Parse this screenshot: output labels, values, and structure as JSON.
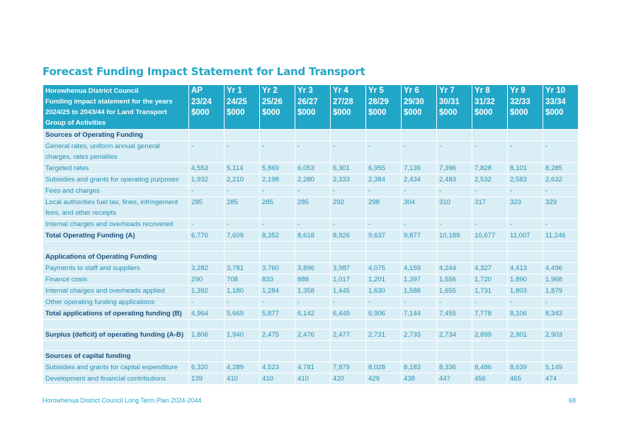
{
  "page_title": "Forecast Funding Impact Statement for Land Transport",
  "header": {
    "label_lines": [
      "Horowhenua District Council",
      "Funding impact statement for the years",
      "2024/25 to 2043/44 for Land Transport",
      "Group of Activities"
    ],
    "columns": [
      {
        "l1": "AP",
        "l2": "23/24",
        "l3": "$000"
      },
      {
        "l1": "Yr 1",
        "l2": "24/25",
        "l3": "$000"
      },
      {
        "l1": "Yr 2",
        "l2": "25/26",
        "l3": "$000"
      },
      {
        "l1": "Yr 3",
        "l2": "26/27",
        "l3": "$000"
      },
      {
        "l1": "Yr 4",
        "l2": "27/28",
        "l3": "$000"
      },
      {
        "l1": "Yr 5",
        "l2": "28/29",
        "l3": "$000"
      },
      {
        "l1": "Yr 6",
        "l2": "29/30",
        "l3": "$000"
      },
      {
        "l1": "Yr 7",
        "l2": "30/31",
        "l3": "$000"
      },
      {
        "l1": "Yr 8",
        "l2": "31/32",
        "l3": "$000"
      },
      {
        "l1": "Yr 9",
        "l2": "32/33",
        "l3": "$000"
      },
      {
        "l1": "Yr 10",
        "l2": "33/34",
        "l3": "$000"
      }
    ]
  },
  "rows": [
    {
      "type": "hdr",
      "label": "Sources of Operating Funding",
      "values": [
        "",
        "",
        "",
        "",
        "",
        "",
        "",
        "",
        "",
        "",
        ""
      ]
    },
    {
      "type": "data",
      "label": "General rates, uniform annual general charges, rates penalties",
      "values": [
        "-",
        "-",
        "-",
        "-",
        "-",
        "-",
        "-",
        "-",
        "-",
        "-",
        "-"
      ]
    },
    {
      "type": "data",
      "label": "Targeted rates",
      "values": [
        "4,553",
        "5,114",
        "5,869",
        "6,053",
        "6,301",
        "6,955",
        "7,139",
        "7,396",
        "7,828",
        "8,101",
        "8,285"
      ]
    },
    {
      "type": "data",
      "label": "Subsidies and grants for operating purposes",
      "values": [
        "1,932",
        "2,210",
        "2,198",
        "2,280",
        "2,333",
        "2,384",
        "2,434",
        "2,483",
        "2,532",
        "2,583",
        "2,632"
      ]
    },
    {
      "type": "data",
      "label": "Fees and charges",
      "values": [
        "-",
        "-",
        "-",
        "-",
        "-",
        "-",
        "-",
        "-",
        "-",
        "-",
        "-"
      ]
    },
    {
      "type": "data",
      "label": "Local authorities fuel tax, fines, infringement fees, and other receipts",
      "values": [
        "285",
        "285",
        "285",
        "285",
        "292",
        "298",
        "304",
        "310",
        "317",
        "323",
        "329"
      ]
    },
    {
      "type": "data",
      "label": "Internal charges and overheads recovered",
      "values": [
        "-",
        "-",
        "-",
        "-",
        "-",
        "-",
        "-",
        "-",
        "-",
        "-",
        "-"
      ]
    },
    {
      "type": "total",
      "label": "Total Operating Funding (A)",
      "values": [
        "6,770",
        "7,609",
        "8,352",
        "8,618",
        "8,926",
        "9,637",
        "9,877",
        "10,189",
        "10,677",
        "11,007",
        "11,246"
      ]
    },
    {
      "type": "spacer",
      "label": "",
      "values": [
        "",
        "",
        "",
        "",
        "",
        "",
        "",
        "",
        "",
        "",
        ""
      ]
    },
    {
      "type": "hdr",
      "label": "Applications of Operating Funding",
      "values": [
        "",
        "",
        "",
        "",
        "",
        "",
        "",
        "",
        "",
        "",
        ""
      ]
    },
    {
      "type": "data",
      "label": "Payments to staff and suppliers",
      "values": [
        "3,282",
        "3,781",
        "3,760",
        "3,896",
        "3,987",
        "4,075",
        "4,159",
        "4,244",
        "4,327",
        "4,413",
        "4,496"
      ]
    },
    {
      "type": "data",
      "label": "Finance costs",
      "values": [
        "290",
        "708",
        "833",
        "888",
        "1,017",
        "1,201",
        "1,397",
        "1,556",
        "1,720",
        "1,890",
        "1,968"
      ]
    },
    {
      "type": "data",
      "label": "Internal charges and overheads applied",
      "values": [
        "1,392",
        "1,180",
        "1,284",
        "1,358",
        "1,445",
        "1,630",
        "1,588",
        "1,655",
        "1,731",
        "1,803",
        "1,879"
      ]
    },
    {
      "type": "data",
      "label": "Other operating funding applications",
      "values": [
        "-",
        "-",
        "-",
        "-",
        "-",
        "-",
        "-",
        "-",
        "-",
        "-",
        "-"
      ]
    },
    {
      "type": "total",
      "label": "Total applications of operating funding (B)",
      "values": [
        "4,964",
        "5,669",
        "5,877",
        "6,142",
        "6,449",
        "6,906",
        "7,144",
        "7,455",
        "7,778",
        "8,106",
        "8,343"
      ]
    },
    {
      "type": "spacer",
      "label": "",
      "values": [
        "",
        "",
        "",
        "",
        "",
        "",
        "",
        "",
        "",
        "",
        ""
      ]
    },
    {
      "type": "total",
      "label": "Surplus (deficit) of operating funding (A-B)",
      "values": [
        "1,806",
        "1,940",
        "2,475",
        "2,476",
        "2,477",
        "2,731",
        "2,733",
        "2,734",
        "2,899",
        "2,901",
        "2,903"
      ]
    },
    {
      "type": "spacer",
      "label": "",
      "values": [
        "",
        "",
        "",
        "",
        "",
        "",
        "",
        "",
        "",
        "",
        ""
      ]
    },
    {
      "type": "hdr",
      "label": "Sources of capital funding",
      "values": [
        "",
        "",
        "",
        "",
        "",
        "",
        "",
        "",
        "",
        "",
        ""
      ]
    },
    {
      "type": "data",
      "label": "Subsidies and grants for capital expenditure",
      "values": [
        "6,320",
        "4,289",
        "4,523",
        "4,781",
        "7,879",
        "8,028",
        "8,183",
        "8,336",
        "8,486",
        "8,639",
        "5,149"
      ]
    },
    {
      "type": "data",
      "label": "Development and financial contributions",
      "values": [
        "139",
        "410",
        "410",
        "410",
        "420",
        "429",
        "438",
        "447",
        "456",
        "465",
        "474"
      ]
    }
  ],
  "footer": {
    "left": "Horowhenua District Council Long Term Plan 2024-2044",
    "page_number": "68"
  }
}
